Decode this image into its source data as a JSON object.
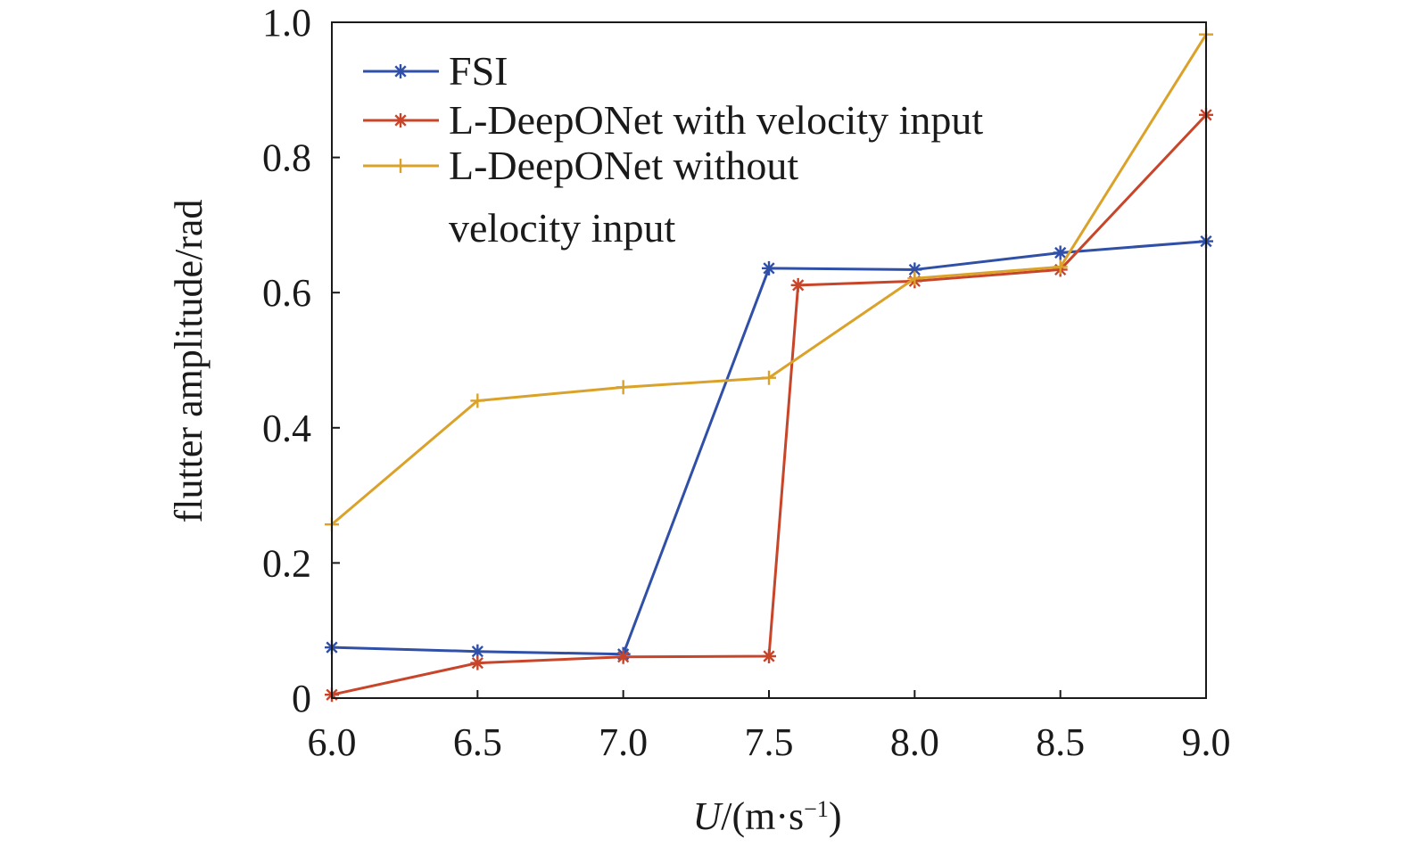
{
  "chart_data": {
    "type": "line",
    "xlabel": {
      "italic": "U",
      "rest": "/(m·s",
      "sup": "−1",
      "close": ")"
    },
    "ylabel": "flutter amplitude/rad",
    "xlim": [
      6.0,
      9.0
    ],
    "ylim": [
      0,
      1.0
    ],
    "x_ticks": [
      "6.0",
      "6.5",
      "7.0",
      "7.5",
      "8.0",
      "8.5",
      "9.0"
    ],
    "y_ticks": [
      "0",
      "0.2",
      "0.4",
      "0.6",
      "0.8",
      "1.0"
    ],
    "legend": {
      "placement": "top-left"
    },
    "series": [
      {
        "name": "FSI",
        "color": "#3050a8",
        "marker": "asterisk",
        "points": [
          [
            6.0,
            0.075
          ],
          [
            6.5,
            0.069
          ],
          [
            7.0,
            0.065
          ],
          [
            7.5,
            0.636
          ],
          [
            8.0,
            0.634
          ],
          [
            8.5,
            0.659
          ],
          [
            9.0,
            0.676
          ]
        ]
      },
      {
        "name": "L-DeepONet with velocity input",
        "color": "#c8452a",
        "marker": "asterisk",
        "points": [
          [
            6.0,
            0.005
          ],
          [
            6.5,
            0.052
          ],
          [
            7.0,
            0.061
          ],
          [
            7.5,
            0.062
          ],
          [
            7.6,
            0.611
          ],
          [
            8.0,
            0.617
          ],
          [
            8.5,
            0.634
          ],
          [
            9.0,
            0.863
          ]
        ]
      },
      {
        "name": "L-DeepONet without velocity input",
        "legend_lines": [
          "L-DeepONet without",
          "velocity input"
        ],
        "color": "#dba22a",
        "marker": "plus",
        "points": [
          [
            6.0,
            0.257
          ],
          [
            6.5,
            0.44
          ],
          [
            7.0,
            0.46
          ],
          [
            7.5,
            0.474
          ],
          [
            8.0,
            0.621
          ],
          [
            8.5,
            0.638
          ],
          [
            9.0,
            0.982
          ]
        ]
      }
    ]
  }
}
